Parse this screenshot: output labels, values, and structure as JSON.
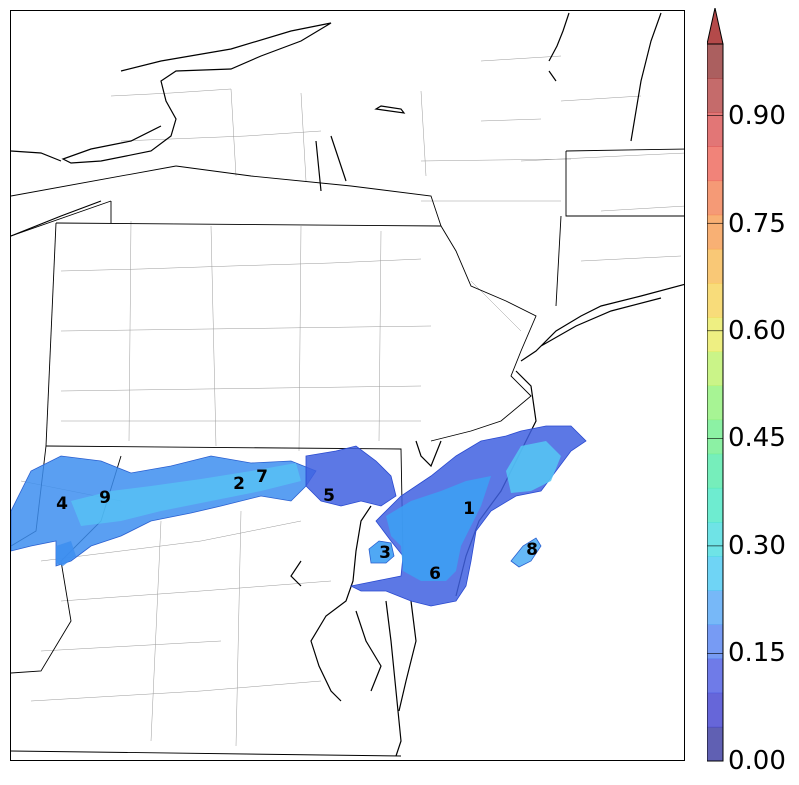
{
  "colorbar": {
    "tick_labels": [
      "0.00",
      "0.15",
      "0.30",
      "0.45",
      "0.60",
      "0.75",
      "0.90"
    ],
    "range": [
      0,
      1.0
    ],
    "extend": "max",
    "colors": [
      "#2b2b9a",
      "#3333cc",
      "#3f4fe0",
      "#4a7af0",
      "#4aa0f5",
      "#3fc6f2",
      "#3fd9dd",
      "#3ee6c0",
      "#48e8a4",
      "#66ec86",
      "#8af070",
      "#b8f060",
      "#e8ea58",
      "#f6d04e",
      "#f7b548",
      "#f59646",
      "#f27848",
      "#ec5a4c",
      "#d84848",
      "#b13a3a",
      "#8f2a2a"
    ]
  },
  "map": {
    "region_labels": [
      "1",
      "2",
      "3",
      "4",
      "5",
      "6",
      "7",
      "8",
      "9"
    ],
    "colors": {
      "state_border": "#000000",
      "county_border": "#888888",
      "coast": "#000000",
      "blob_dark": "#3f60e0",
      "blob_mid": "#3d8ef0",
      "blob_light": "#55c8f5"
    }
  }
}
